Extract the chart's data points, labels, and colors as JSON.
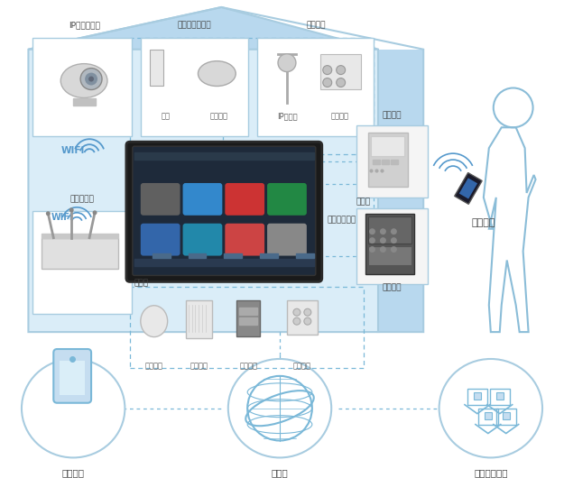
{
  "bg_color": "#ffffff",
  "house_fill": "#daedf8",
  "house_edge": "#a8cce0",
  "wall_fill": "#b8d8ee",
  "box_fill": "#ffffff",
  "box_edge": "#a8cce0",
  "dashed_color": "#7ab8d8",
  "text_dark": "#444444",
  "text_blue": "#5599cc",
  "text_label": "#555555",
  "title_camera": "IP网络摄像机",
  "title_security": "安防报警探测器",
  "title_optional": "选配设备",
  "title_gateway": "路由器网关",
  "title_controller": "控制器",
  "title_terminal": "智能家庭终端",
  "title_doorbell": "可视门铃",
  "title_resident": "住户门",
  "title_lock": "智能门锁",
  "title_remote": "远程控制",
  "title_phone": "智能手机",
  "title_internet": "因特网",
  "title_smarthome": "智能家居门户",
  "label_door_mag": "门磁",
  "label_motion": "移动探测",
  "label_ipcam": "IP摄像头",
  "label_dynamic": "动态侦测",
  "label_gas": "燃气渎漏",
  "label_ac": "空调控制",
  "label_light": "智能照明",
  "label_power": "节能插座",
  "label_wifi": "WIFI"
}
